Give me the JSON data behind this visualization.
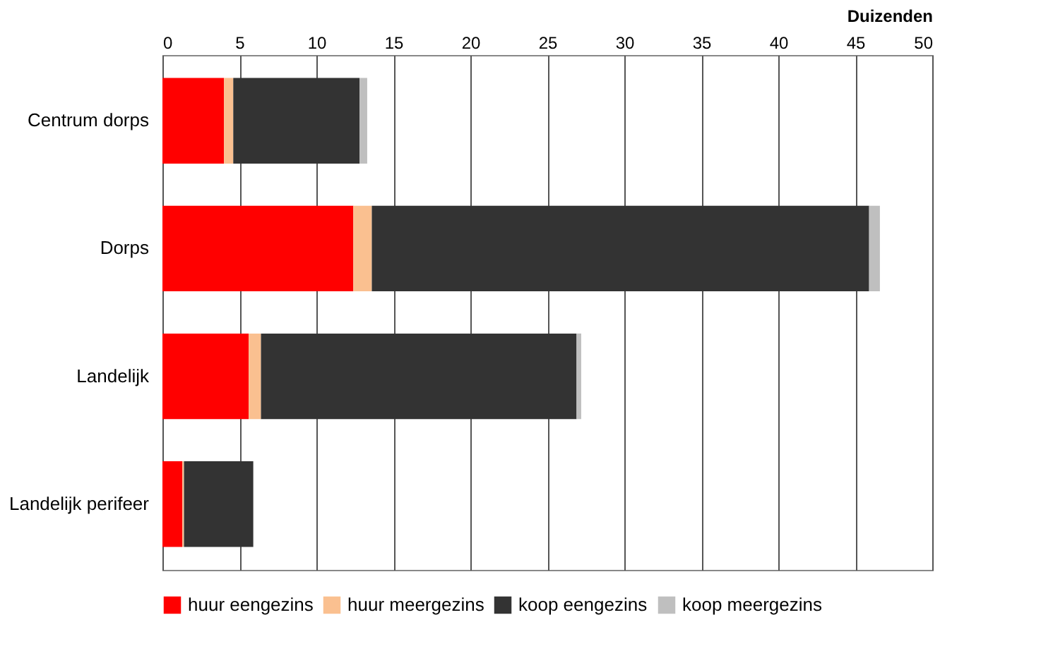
{
  "chart_data": {
    "type": "bar",
    "orientation": "horizontal",
    "stacked": true,
    "xlabel": "Duizenden",
    "categories": [
      "Centrum dorps",
      "Dorps",
      "Landelijk",
      "Landelijk perifeer"
    ],
    "series": [
      {
        "name": "huur eengezins",
        "color": "#ff0000",
        "values": [
          4.0,
          12.4,
          5.6,
          1.3
        ]
      },
      {
        "name": "huur meergezins",
        "color": "#fac090",
        "values": [
          0.6,
          1.2,
          0.8,
          0.1
        ]
      },
      {
        "name": "koop eengezins",
        "color": "#333333",
        "values": [
          8.2,
          32.3,
          20.5,
          4.5
        ]
      },
      {
        "name": "koop meergezins",
        "color": "#bfbfbf",
        "values": [
          0.5,
          0.7,
          0.3,
          0
        ]
      }
    ],
    "xlim": [
      0,
      50
    ],
    "xticks": [
      0,
      5,
      10,
      15,
      20,
      25,
      30,
      35,
      40,
      45,
      50
    ],
    "grid": "x",
    "legend": "bottom"
  }
}
